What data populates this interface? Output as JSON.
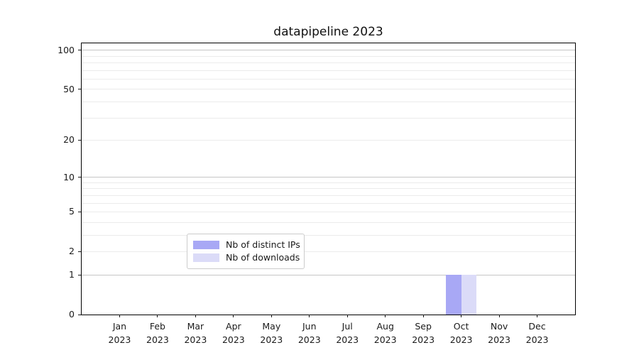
{
  "chart_data": {
    "type": "bar",
    "title": "datapipeline 2023",
    "categories": [
      "Jan 2023",
      "Feb 2023",
      "Mar 2023",
      "Apr 2023",
      "May 2023",
      "Jun 2023",
      "Jul 2023",
      "Aug 2023",
      "Sep 2023",
      "Oct 2023",
      "Nov 2023",
      "Dec 2023"
    ],
    "series": [
      {
        "name": "Nb of distinct IPs",
        "color": "#a8a8f5",
        "values": [
          0,
          0,
          0,
          0,
          0,
          0,
          0,
          0,
          0,
          1,
          0,
          0
        ]
      },
      {
        "name": "Nb of downloads",
        "color": "#dbdbf8",
        "values": [
          0,
          0,
          0,
          0,
          0,
          0,
          0,
          0,
          0,
          1,
          0,
          0
        ]
      }
    ],
    "xlabel": "",
    "ylabel": "",
    "yscale": "log1p",
    "ylim": [
      0,
      113
    ],
    "y_tick_labels": [
      0,
      1,
      2,
      5,
      10,
      20,
      50,
      100
    ],
    "y_major_gridlines": [
      1,
      10,
      100
    ],
    "y_minor_gridlines": [
      2,
      3,
      4,
      5,
      6,
      7,
      8,
      9,
      20,
      30,
      40,
      50,
      60,
      70,
      80,
      90
    ],
    "grid": true,
    "legend": {
      "position": "lower center",
      "entries": [
        "Nb of distinct IPs",
        "Nb of downloads"
      ]
    },
    "colors": {
      "major_grid": "#c6c6c6",
      "minor_grid": "#ebebeb",
      "axis": "#000000",
      "text": "#1a1a1a",
      "background": "#ffffff"
    }
  }
}
